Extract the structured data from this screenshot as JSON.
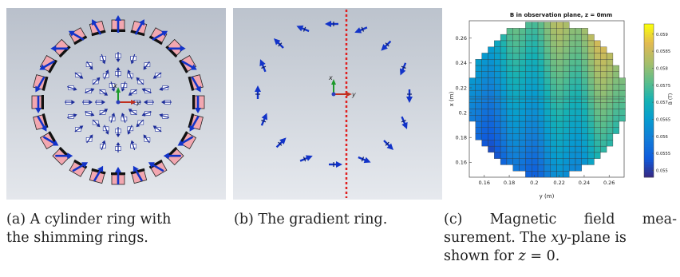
{
  "panel_a": {
    "axis_x": "x",
    "axis_y": "y"
  },
  "panel_b": {
    "axis_x": "x",
    "axis_y": "y"
  },
  "panel_c": {
    "chart_data": {
      "type": "heatmap",
      "title": "B in observation plane, z = 0mm",
      "xlabel": "y (m)",
      "ylabel": "x (m)",
      "colorbar_label": "B (T)",
      "xlim": [
        0.148,
        0.272
      ],
      "ylim": [
        0.148,
        0.274
      ],
      "x_ticks": [
        "0.16",
        "0.18",
        "0.2",
        "0.22",
        "0.24",
        "0.26"
      ],
      "y_ticks": [
        "0.16",
        "0.18",
        "0.2",
        "0.22",
        "0.24",
        "0.26"
      ],
      "colorbar_range": [
        0.0548,
        0.0593
      ],
      "colorbar_ticks": [
        "0.055",
        "0.0555",
        "0.056",
        "0.0565",
        "0.057",
        "0.0575",
        "0.058",
        "0.0585",
        "0.059"
      ],
      "colormap": "parula",
      "grid_region": "circle",
      "center": [
        0.21,
        0.211
      ],
      "low_at": "bottom-left",
      "high_at": "top-right"
    }
  },
  "captions": {
    "a_line1": "(a) A cylinder ring with",
    "a_line2": "the shimming rings.",
    "b_line1": "(b) The gradient ring.",
    "c_line1": "(c) Magnetic field mea-",
    "c_line2_a": "surement. The ",
    "c_line2_math": "xy",
    "c_line2_b": "-plane is",
    "c_line3_a": "shown for ",
    "c_line3_math": "z",
    "c_line3_b": " = 0."
  }
}
